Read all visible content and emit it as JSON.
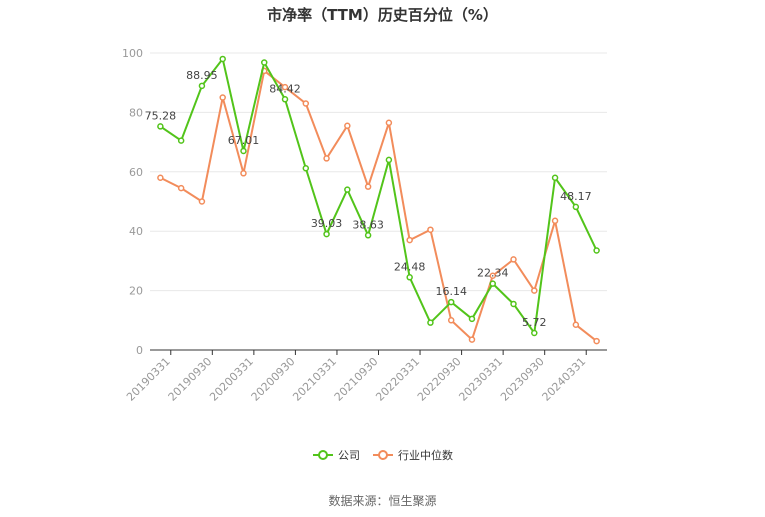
{
  "chart_data": {
    "type": "line",
    "title": "市净率（TTM）历史百分位（%）",
    "source": "数据来源：恒生聚源",
    "ylim": [
      0,
      100
    ],
    "yticks": [
      0,
      20,
      40,
      60,
      80,
      100
    ],
    "xtick_labels": [
      "20190331",
      "20190930",
      "20200331",
      "20200930",
      "20210331",
      "20210930",
      "20220331",
      "20220930",
      "20230331",
      "20230930",
      "20240331"
    ],
    "legend_position": "bottom-center",
    "grid": "horizontal",
    "series": [
      {
        "name": "公司",
        "color": "#52c41a",
        "values": [
          75.28,
          70.5,
          88.95,
          98.0,
          67.01,
          96.8,
          84.42,
          61.2,
          39.03,
          54.0,
          38.63,
          64.0,
          24.48,
          9.2,
          16.14,
          10.5,
          22.34,
          15.5,
          5.72,
          58.0,
          48.17,
          33.5
        ],
        "labels": {
          "0": "75.28",
          "2": "88.95",
          "4": "67.01",
          "6": "84.42",
          "8": "39.03",
          "10": "38.63",
          "12": "24.48",
          "14": "16.14",
          "16": "22.34",
          "18": "5.72",
          "20": "48.17"
        }
      },
      {
        "name": "行业中位数",
        "color": "#f28c5b",
        "values": [
          58.0,
          54.5,
          50.0,
          85.0,
          59.5,
          94.0,
          88.5,
          83.0,
          64.5,
          75.5,
          55.0,
          76.5,
          37.0,
          40.5,
          10.0,
          3.5,
          25.0,
          30.5,
          20.0,
          43.5,
          8.5,
          3.0
        ]
      }
    ]
  }
}
